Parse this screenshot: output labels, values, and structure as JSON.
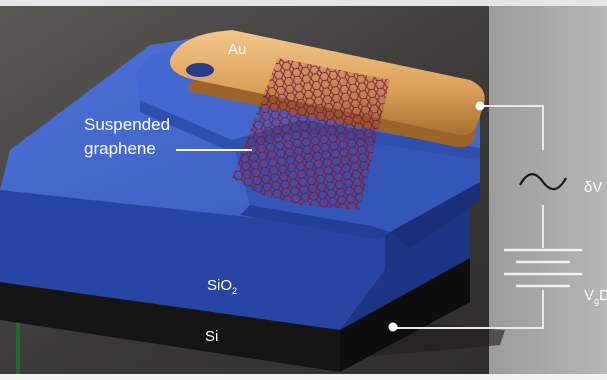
{
  "labels": {
    "gold": "Au",
    "suspended_line1": "Suspended",
    "suspended_line2": "graphene",
    "oxide_base": "SiO",
    "oxide_sub": "2",
    "silicon": "Si",
    "ac_source": "δV",
    "dc_source_base": "V",
    "dc_source_sub": "g",
    "dc_source_suffix": "DC"
  },
  "colors": {
    "background": "#3f3e3c",
    "panel": "#a8a8a6",
    "oxide_top": "#3f62c6",
    "oxide_front": "#2746a4",
    "oxide_side": "#1c3585",
    "silicon": "#161616",
    "gold": "#e2aa62",
    "graphene": "#7a1a38",
    "wire": "#e8e8e8",
    "border_accent": "#1f6b2c"
  }
}
